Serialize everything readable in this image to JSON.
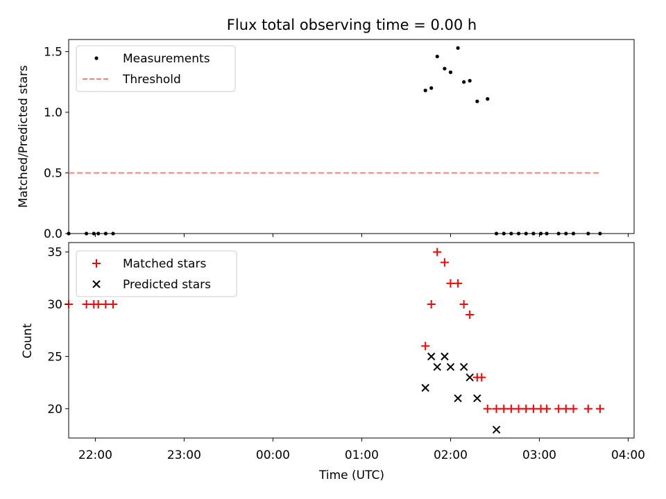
{
  "figure": {
    "title": "Flux total observing time = 0.00 h",
    "xlabel": "Time (UTC)"
  },
  "chart_data": [
    {
      "type": "scatter",
      "ylabel": "Matched/Predicted stars",
      "xlim": [
        "21:42",
        "04:04"
      ],
      "ylim": [
        0,
        1.6
      ],
      "yticks": [
        0.0,
        0.5,
        1.0,
        1.5
      ],
      "ytick_labels": [
        "0.0",
        "0.5",
        "1.0",
        "1.5"
      ],
      "grid": false,
      "legend_position": "top-left",
      "series": [
        {
          "name": "Measurements",
          "marker": "dot",
          "color": "#000000",
          "x": [
            "21:42",
            "21:54",
            "21:59",
            "22:02",
            "22:07",
            "22:12",
            "01:43",
            "01:47",
            "01:51",
            "01:56",
            "02:00",
            "02:05",
            "02:09",
            "02:13",
            "02:18",
            "02:25",
            "02:31",
            "02:36",
            "02:41",
            "02:46",
            "02:51",
            "02:56",
            "03:01",
            "03:05",
            "03:13",
            "03:18",
            "03:23",
            "03:33",
            "03:41"
          ],
          "values": [
            0,
            0,
            0,
            0,
            0,
            0,
            1.18,
            1.2,
            1.46,
            1.36,
            1.33,
            1.53,
            1.25,
            1.26,
            1.09,
            1.11,
            0,
            0,
            0,
            0,
            0,
            0,
            0,
            0,
            0,
            0,
            0,
            0,
            0
          ]
        },
        {
          "name": "Threshold",
          "style": "dashed-line",
          "color": "#ff7f7f",
          "x": [
            "21:42",
            "03:41"
          ],
          "values": [
            0.5,
            0.5
          ]
        }
      ]
    },
    {
      "type": "scatter",
      "ylabel": "Count",
      "xlim": [
        "21:42",
        "04:04"
      ],
      "ylim": [
        17.2,
        35.9
      ],
      "yticks": [
        20,
        25,
        30,
        35
      ],
      "ytick_labels": [
        "20",
        "25",
        "30",
        "35"
      ],
      "xticks": [
        "22:00",
        "23:00",
        "00:00",
        "01:00",
        "02:00",
        "03:00",
        "04:00"
      ],
      "grid": false,
      "legend_position": "top-left",
      "series": [
        {
          "name": "Matched stars",
          "marker": "plus",
          "color": "#ff0000",
          "x": [
            "21:42",
            "21:54",
            "21:59",
            "22:02",
            "22:07",
            "22:12",
            "01:43",
            "01:47",
            "01:51",
            "01:56",
            "02:00",
            "02:05",
            "02:09",
            "02:13",
            "02:18",
            "02:21",
            "02:25",
            "02:31",
            "02:36",
            "02:41",
            "02:46",
            "02:51",
            "02:56",
            "03:01",
            "03:05",
            "03:13",
            "03:18",
            "03:23",
            "03:33",
            "03:41"
          ],
          "values": [
            30,
            30,
            30,
            30,
            30,
            30,
            26,
            30,
            35,
            34,
            32,
            32,
            30,
            29,
            23,
            23,
            20,
            20,
            20,
            20,
            20,
            20,
            20,
            20,
            20,
            20,
            20,
            20,
            20,
            20
          ]
        },
        {
          "name": "Predicted stars",
          "marker": "x",
          "color": "#000000",
          "x": [
            "01:43",
            "01:47",
            "01:51",
            "01:56",
            "02:00",
            "02:05",
            "02:09",
            "02:13",
            "02:18",
            "02:31"
          ],
          "values": [
            22,
            25,
            24,
            25,
            24,
            21,
            24,
            23,
            21,
            18
          ]
        }
      ]
    }
  ]
}
